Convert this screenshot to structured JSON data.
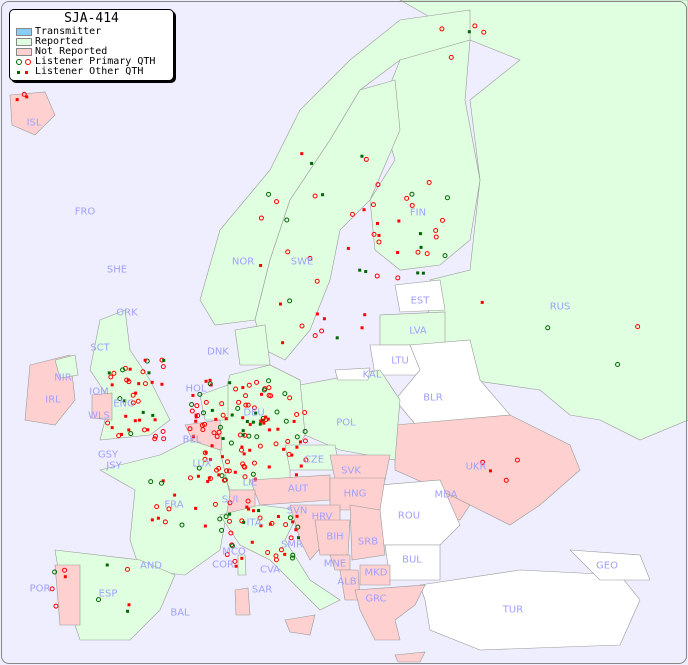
{
  "legend": {
    "title": "SJA-414",
    "items": [
      {
        "label": "Transmitter",
        "color": "#88ccf8"
      },
      {
        "label": "Reported",
        "color": "#e0ffe0"
      },
      {
        "label": "Not Reported",
        "color": "#ffd0d0"
      },
      {
        "label": "Listener Primary QTH",
        "colors": [
          "#006600",
          "#ff0000"
        ]
      },
      {
        "label": "Listener Other QTH",
        "colors": [
          "#006600",
          "#ff0000"
        ]
      }
    ]
  },
  "colors": {
    "sea": "#eeeeff",
    "reported": "#e0ffe0",
    "not_reported": "#ffd0d0",
    "no_data": "#ffffff",
    "label": "#a0a0ff"
  },
  "countries": [
    "ISL",
    "FRO",
    "SHE",
    "ORK",
    "NOR",
    "SWE",
    "FIN",
    "EST",
    "RUS",
    "LVA",
    "LTU",
    "KAL",
    "BLR",
    "DNK",
    "SCT",
    "NIR",
    "IRL",
    "IOM",
    "WLS",
    "ENG",
    "HOL",
    "DEU",
    "POL",
    "BEL",
    "GSY",
    "JSY",
    "LUX",
    "CZE",
    "SVK",
    "UKR",
    "MDA",
    "FRA",
    "SUI",
    "LIE",
    "AUT",
    "HNG",
    "SVN",
    "HRV",
    "ROU",
    "ITA",
    "SMR",
    "BIH",
    "SRB",
    "MCO",
    "COR",
    "CVA",
    "MNE",
    "BUL",
    "GEO",
    "AND",
    "POR",
    "ESP",
    "ALB",
    "MKD",
    "BAL",
    "SAR",
    "GRC",
    "TUR"
  ]
}
